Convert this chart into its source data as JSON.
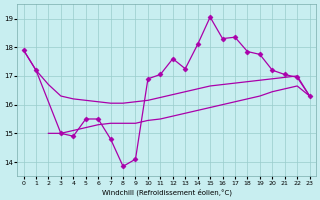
{
  "x_jagged": [
    0,
    1,
    3,
    4,
    5,
    6,
    7,
    8,
    9,
    10,
    11,
    12,
    13,
    14,
    15,
    16,
    17,
    18,
    19,
    20,
    21,
    22,
    23
  ],
  "y_jagged": [
    17.9,
    17.2,
    15.0,
    14.9,
    15.5,
    15.5,
    14.8,
    13.85,
    14.1,
    16.9,
    17.05,
    17.6,
    17.25,
    18.1,
    19.05,
    18.3,
    18.35,
    17.85,
    17.75,
    17.2,
    17.05,
    16.95,
    16.3
  ],
  "x_upper": [
    0,
    1,
    2,
    3,
    4,
    5,
    6,
    7,
    8,
    9,
    10,
    11,
    12,
    13,
    14,
    15,
    16,
    17,
    18,
    19,
    20,
    21,
    22,
    23
  ],
  "y_upper": [
    17.9,
    17.2,
    16.7,
    16.3,
    16.2,
    16.15,
    16.1,
    16.05,
    16.05,
    16.1,
    16.15,
    16.25,
    16.35,
    16.45,
    16.55,
    16.65,
    16.7,
    16.75,
    16.8,
    16.85,
    16.9,
    16.95,
    17.0,
    16.3
  ],
  "x_lower": [
    2,
    3,
    4,
    5,
    6,
    7,
    8,
    9,
    10,
    11,
    12,
    13,
    14,
    15,
    16,
    17,
    18,
    19,
    20,
    21,
    22,
    23
  ],
  "y_lower": [
    15.0,
    15.0,
    15.1,
    15.2,
    15.3,
    15.35,
    15.35,
    15.35,
    15.45,
    15.5,
    15.6,
    15.7,
    15.8,
    15.9,
    16.0,
    16.1,
    16.2,
    16.3,
    16.45,
    16.55,
    16.65,
    16.3
  ],
  "line_color": "#aa00aa",
  "bg_color": "#c8eef0",
  "grid_color": "#99cccc",
  "xlim": [
    -0.5,
    23.5
  ],
  "ylim": [
    13.5,
    19.5
  ],
  "yticks": [
    14,
    15,
    16,
    17,
    18,
    19
  ],
  "xticks": [
    0,
    1,
    2,
    3,
    4,
    5,
    6,
    7,
    8,
    9,
    10,
    11,
    12,
    13,
    14,
    15,
    16,
    17,
    18,
    19,
    20,
    21,
    22,
    23
  ],
  "xlabel": "Windchill (Refroidissement éolien,°C)",
  "marker": "D",
  "markersize": 2.5,
  "linewidth": 0.9
}
